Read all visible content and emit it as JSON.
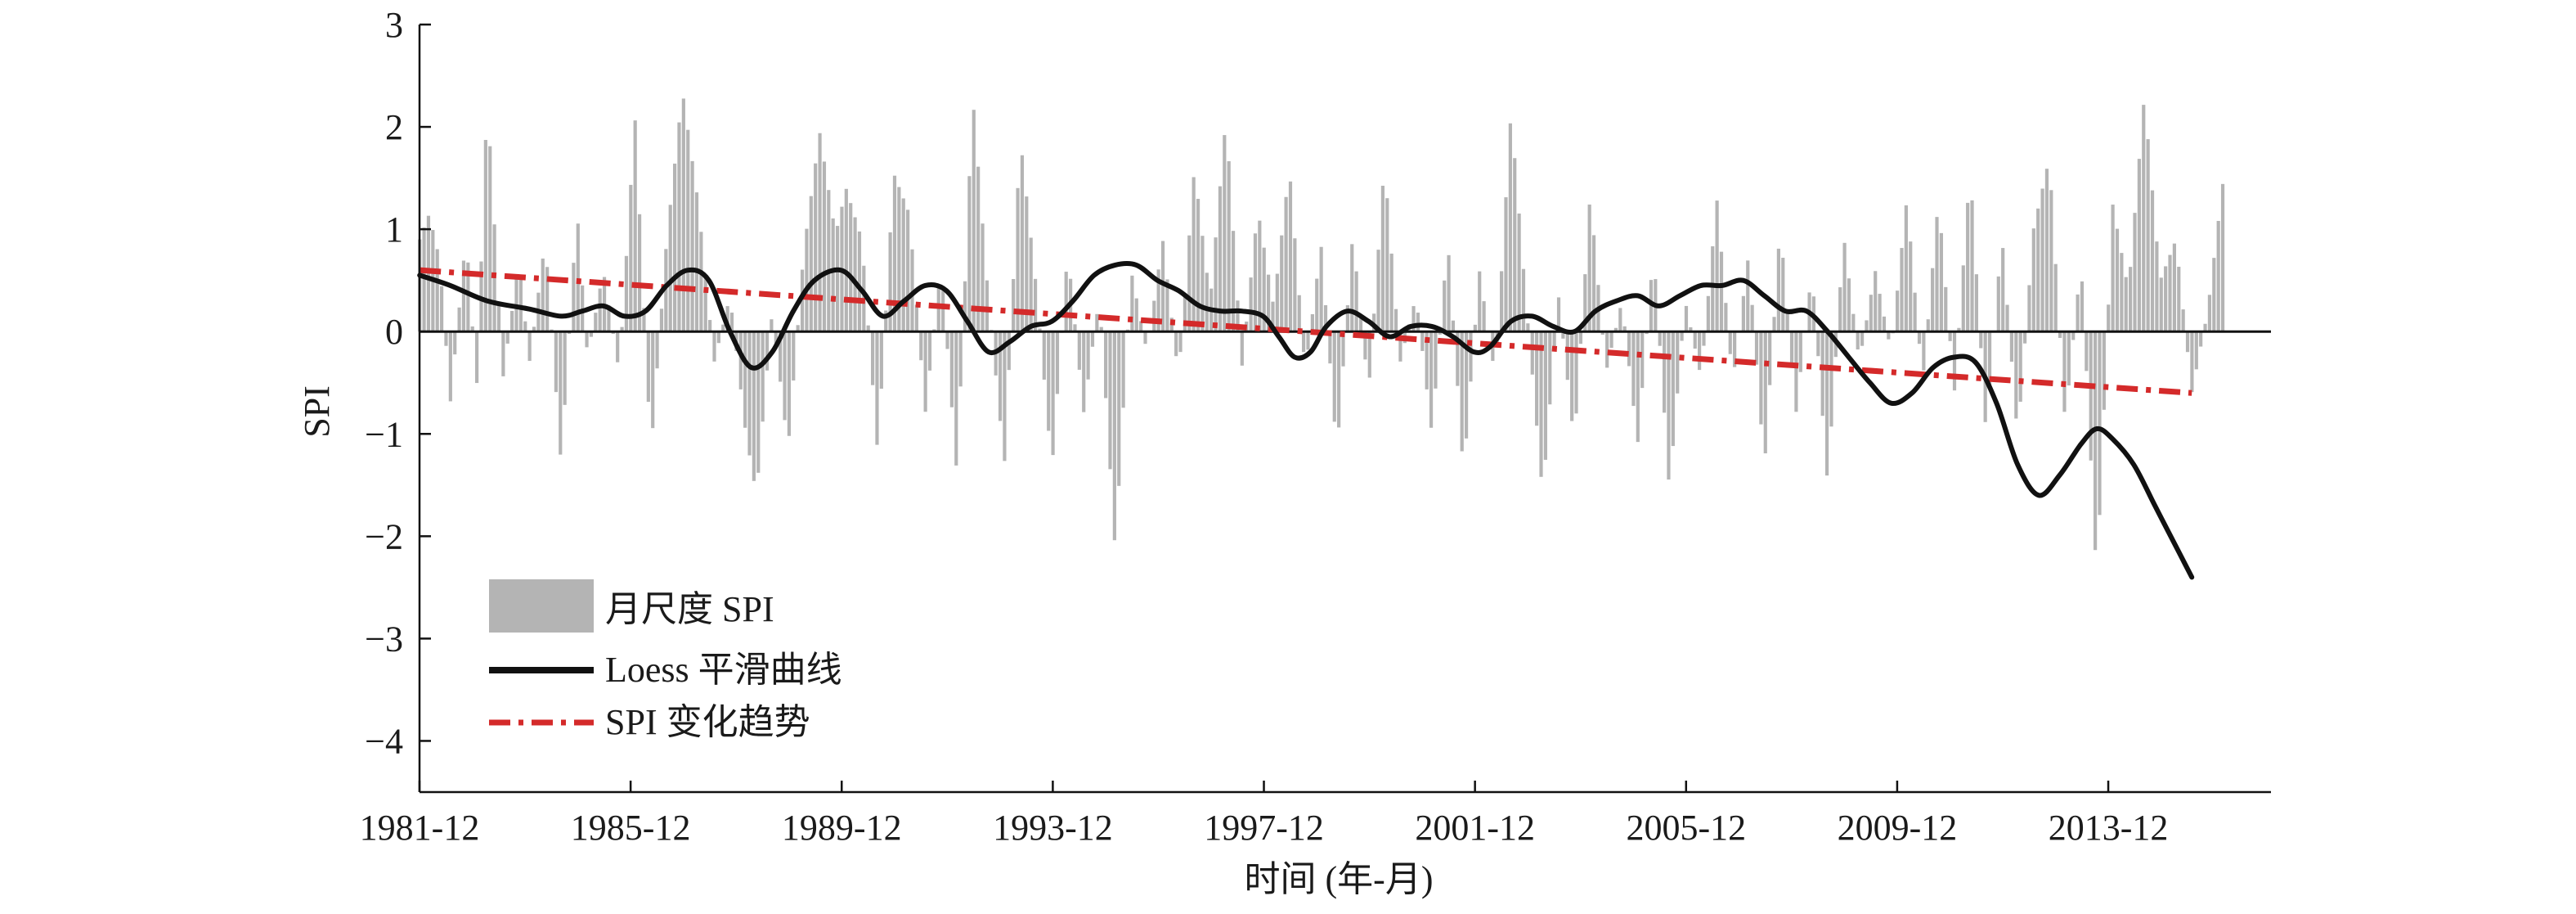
{
  "chart_data": {
    "type": "bar",
    "ylabel": "SPI",
    "xlabel": "时间 (年-月)",
    "ylim": [
      -4.5,
      3
    ],
    "yticks": [
      3,
      2,
      1,
      0,
      -1,
      -2,
      -3,
      -4
    ],
    "ytick_labels": [
      "3",
      "2",
      "1",
      "0",
      "−1",
      "−2",
      "−3",
      "−4"
    ],
    "x_domain_years": [
      1981.917,
      2017.0
    ],
    "xticks": [
      {
        "label": "1981-12",
        "year": 1981.917
      },
      {
        "label": "1985-12",
        "year": 1985.917
      },
      {
        "label": "1989-12",
        "year": 1989.917
      },
      {
        "label": "1993-12",
        "year": 1993.917
      },
      {
        "label": "1997-12",
        "year": 1997.917
      },
      {
        "label": "2001-12",
        "year": 2001.917
      },
      {
        "label": "2005-12",
        "year": 2005.917
      },
      {
        "label": "2009-12",
        "year": 2009.917
      },
      {
        "label": "2013-12",
        "year": 2013.917
      }
    ],
    "colors": {
      "bars": "#b4b4b4",
      "loess": "#111111",
      "trend": "#d42a2a"
    },
    "legend": {
      "placement": "bottom-left",
      "entries": [
        {
          "label": "月尺度 SPI",
          "kind": "bar"
        },
        {
          "label": "Loess 平滑曲线",
          "kind": "line"
        },
        {
          "label": "SPI 变化趋势",
          "kind": "dashdot"
        }
      ]
    },
    "series": [
      {
        "name": "月尺度 SPI",
        "kind": "bar",
        "anchors": [
          [
            1981.92,
            0.9
          ],
          [
            1982.1,
            1.15
          ],
          [
            1982.3,
            0.7
          ],
          [
            1982.5,
            -0.7
          ],
          [
            1982.8,
            0.95
          ],
          [
            1983.0,
            -0.55
          ],
          [
            1983.2,
            2.3
          ],
          [
            1983.5,
            -0.45
          ],
          [
            1983.8,
            0.7
          ],
          [
            1984.0,
            -0.3
          ],
          [
            1984.3,
            0.9
          ],
          [
            1984.6,
            -1.3
          ],
          [
            1984.9,
            1.2
          ],
          [
            1985.1,
            -0.25
          ],
          [
            1985.4,
            0.6
          ],
          [
            1985.7,
            -0.4
          ],
          [
            1986.0,
            2.1
          ],
          [
            1986.3,
            -1.2
          ],
          [
            1986.6,
            0.9
          ],
          [
            1986.9,
            2.35
          ],
          [
            1987.2,
            1.25
          ],
          [
            1987.5,
            -0.3
          ],
          [
            1987.8,
            0.35
          ],
          [
            1988.1,
            -1.0
          ],
          [
            1988.3,
            -1.6
          ],
          [
            1988.6,
            0.2
          ],
          [
            1988.9,
            -1.15
          ],
          [
            1989.2,
            0.8
          ],
          [
            1989.5,
            1.95
          ],
          [
            1989.8,
            0.95
          ],
          [
            1990.0,
            1.4
          ],
          [
            1990.3,
            0.9
          ],
          [
            1990.6,
            -1.2
          ],
          [
            1990.9,
            1.55
          ],
          [
            1991.2,
            1.15
          ],
          [
            1991.5,
            -0.8
          ],
          [
            1991.8,
            0.65
          ],
          [
            1992.1,
            -1.4
          ],
          [
            1992.4,
            2.3
          ],
          [
            1992.7,
            0.3
          ],
          [
            1993.0,
            -1.3
          ],
          [
            1993.3,
            1.9
          ],
          [
            1993.6,
            0.45
          ],
          [
            1993.9,
            -1.35
          ],
          [
            1994.2,
            0.8
          ],
          [
            1994.5,
            -0.8
          ],
          [
            1994.8,
            0.35
          ],
          [
            1995.1,
            -2.15
          ],
          [
            1995.4,
            0.6
          ],
          [
            1995.7,
            -0.2
          ],
          [
            1996.0,
            0.9
          ],
          [
            1996.3,
            -0.45
          ],
          [
            1996.6,
            1.6
          ],
          [
            1996.9,
            0.3
          ],
          [
            1997.2,
            2.1
          ],
          [
            1997.5,
            -0.35
          ],
          [
            1997.8,
            1.2
          ],
          [
            1998.1,
            0.25
          ],
          [
            1998.4,
            1.6
          ],
          [
            1998.7,
            -0.4
          ],
          [
            1999.0,
            0.85
          ],
          [
            1999.3,
            -1.2
          ],
          [
            1999.6,
            0.95
          ],
          [
            1999.9,
            -0.6
          ],
          [
            2000.2,
            1.65
          ],
          [
            2000.5,
            -0.3
          ],
          [
            2000.8,
            0.35
          ],
          [
            2001.1,
            -1.0
          ],
          [
            2001.4,
            0.9
          ],
          [
            2001.7,
            -1.4
          ],
          [
            2002.0,
            0.6
          ],
          [
            2002.3,
            -0.45
          ],
          [
            2002.6,
            2.15
          ],
          [
            2002.9,
            0.2
          ],
          [
            2003.2,
            -1.6
          ],
          [
            2003.5,
            0.35
          ],
          [
            2003.8,
            -1.1
          ],
          [
            2004.1,
            1.35
          ],
          [
            2004.4,
            -0.4
          ],
          [
            2004.7,
            0.3
          ],
          [
            2005.0,
            -1.1
          ],
          [
            2005.3,
            0.8
          ],
          [
            2005.6,
            -1.55
          ],
          [
            2005.9,
            0.3
          ],
          [
            2006.2,
            -0.45
          ],
          [
            2006.5,
            1.3
          ],
          [
            2006.8,
            -0.5
          ],
          [
            2007.1,
            0.75
          ],
          [
            2007.4,
            -1.35
          ],
          [
            2007.7,
            1.05
          ],
          [
            2008.0,
            -0.8
          ],
          [
            2008.3,
            0.6
          ],
          [
            2008.6,
            -1.5
          ],
          [
            2008.9,
            0.95
          ],
          [
            2009.2,
            -0.3
          ],
          [
            2009.5,
            0.6
          ],
          [
            2009.8,
            -0.2
          ],
          [
            2010.1,
            1.3
          ],
          [
            2010.4,
            -0.5
          ],
          [
            2010.7,
            1.3
          ],
          [
            2011.0,
            -0.6
          ],
          [
            2011.3,
            1.6
          ],
          [
            2011.6,
            -1.0
          ],
          [
            2011.9,
            0.95
          ],
          [
            2012.2,
            -1.05
          ],
          [
            2012.5,
            1.0
          ],
          [
            2012.8,
            1.7
          ],
          [
            2013.1,
            -0.9
          ],
          [
            2013.4,
            0.7
          ],
          [
            2013.7,
            -2.45
          ],
          [
            2014.0,
            1.25
          ],
          [
            2014.3,
            0.4
          ],
          [
            2014.6,
            2.3
          ],
          [
            2014.9,
            0.5
          ],
          [
            2015.2,
            0.9
          ],
          [
            2015.5,
            -0.6
          ],
          [
            2015.8,
            0.2
          ],
          [
            2016.1,
            1.5
          ]
        ]
      },
      {
        "name": "Loess 平滑曲线",
        "kind": "line",
        "points": [
          [
            1981.92,
            0.55
          ],
          [
            1982.5,
            0.45
          ],
          [
            1983.2,
            0.3
          ],
          [
            1984.0,
            0.22
          ],
          [
            1984.6,
            0.15
          ],
          [
            1985.0,
            0.2
          ],
          [
            1985.4,
            0.25
          ],
          [
            1985.8,
            0.15
          ],
          [
            1986.2,
            0.2
          ],
          [
            1986.6,
            0.45
          ],
          [
            1987.0,
            0.6
          ],
          [
            1987.4,
            0.5
          ],
          [
            1987.8,
            0.0
          ],
          [
            1988.2,
            -0.35
          ],
          [
            1988.6,
            -0.2
          ],
          [
            1989.0,
            0.2
          ],
          [
            1989.4,
            0.5
          ],
          [
            1989.9,
            0.6
          ],
          [
            1990.3,
            0.4
          ],
          [
            1990.7,
            0.15
          ],
          [
            1991.1,
            0.3
          ],
          [
            1991.5,
            0.45
          ],
          [
            1991.9,
            0.4
          ],
          [
            1992.3,
            0.1
          ],
          [
            1992.7,
            -0.2
          ],
          [
            1993.1,
            -0.1
          ],
          [
            1993.5,
            0.05
          ],
          [
            1993.9,
            0.1
          ],
          [
            1994.3,
            0.3
          ],
          [
            1994.7,
            0.55
          ],
          [
            1995.1,
            0.65
          ],
          [
            1995.5,
            0.65
          ],
          [
            1995.9,
            0.5
          ],
          [
            1996.3,
            0.4
          ],
          [
            1996.7,
            0.25
          ],
          [
            1997.1,
            0.2
          ],
          [
            1997.5,
            0.2
          ],
          [
            1997.9,
            0.15
          ],
          [
            1998.2,
            -0.05
          ],
          [
            1998.5,
            -0.25
          ],
          [
            1998.8,
            -0.2
          ],
          [
            1999.1,
            0.05
          ],
          [
            1999.5,
            0.2
          ],
          [
            1999.9,
            0.1
          ],
          [
            2000.3,
            -0.05
          ],
          [
            2000.7,
            0.05
          ],
          [
            2001.1,
            0.05
          ],
          [
            2001.5,
            -0.05
          ],
          [
            2001.9,
            -0.2
          ],
          [
            2002.2,
            -0.15
          ],
          [
            2002.6,
            0.1
          ],
          [
            2003.0,
            0.15
          ],
          [
            2003.4,
            0.05
          ],
          [
            2003.8,
            0.0
          ],
          [
            2004.2,
            0.2
          ],
          [
            2004.6,
            0.3
          ],
          [
            2005.0,
            0.35
          ],
          [
            2005.4,
            0.25
          ],
          [
            2005.8,
            0.35
          ],
          [
            2006.2,
            0.45
          ],
          [
            2006.6,
            0.45
          ],
          [
            2007.0,
            0.5
          ],
          [
            2007.4,
            0.35
          ],
          [
            2007.8,
            0.2
          ],
          [
            2008.2,
            0.2
          ],
          [
            2008.6,
            0.0
          ],
          [
            2009.0,
            -0.25
          ],
          [
            2009.4,
            -0.5
          ],
          [
            2009.8,
            -0.7
          ],
          [
            2010.2,
            -0.6
          ],
          [
            2010.6,
            -0.35
          ],
          [
            2011.0,
            -0.25
          ],
          [
            2011.4,
            -0.3
          ],
          [
            2011.8,
            -0.7
          ],
          [
            2012.2,
            -1.3
          ],
          [
            2012.6,
            -1.6
          ],
          [
            2013.0,
            -1.4
          ],
          [
            2013.4,
            -1.1
          ],
          [
            2013.7,
            -0.95
          ],
          [
            2014.0,
            -1.05
          ],
          [
            2014.4,
            -1.3
          ],
          [
            2014.8,
            -1.7
          ],
          [
            2015.2,
            -2.1
          ],
          [
            2015.5,
            -2.4
          ]
        ]
      },
      {
        "name": "SPI 变化趋势",
        "kind": "trend",
        "points": [
          [
            1981.92,
            0.6
          ],
          [
            2015.5,
            -0.6
          ]
        ]
      }
    ]
  }
}
